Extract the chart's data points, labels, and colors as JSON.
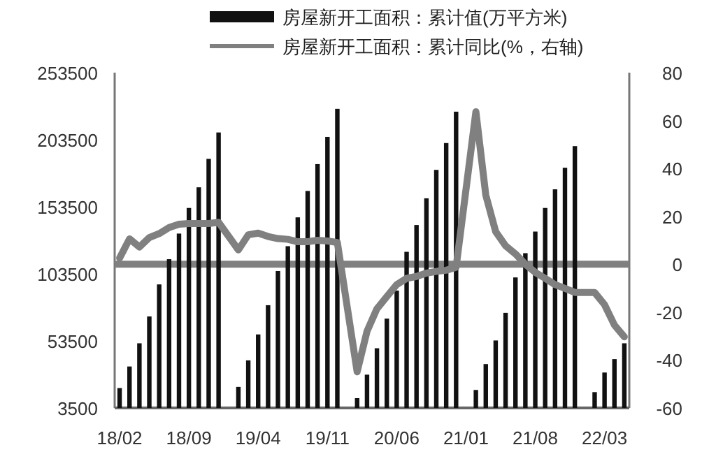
{
  "chart_data": {
    "type": "bar",
    "categories": [
      "18/02",
      null,
      null,
      null,
      null,
      null,
      null,
      "18/09",
      null,
      null,
      null,
      null,
      null,
      null,
      "19/04",
      null,
      null,
      null,
      null,
      null,
      null,
      "19/11",
      null,
      null,
      null,
      null,
      null,
      null,
      "20/06",
      null,
      null,
      null,
      null,
      null,
      null,
      "21/01",
      null,
      null,
      null,
      null,
      null,
      null,
      "21/08",
      null,
      null,
      null,
      null,
      null,
      null,
      "22/03",
      null,
      null
    ],
    "series": [
      {
        "name": "房屋新开工面积：累计值(万平方米)",
        "color": "#111111",
        "values": [
          18300,
          34400,
          51700,
          71700,
          95600,
          114400,
          133500,
          152600,
          168000,
          189200,
          208900,
          null,
          19200,
          38950,
          58300,
          80100,
          105600,
          124100,
          145600,
          165300,
          185300,
          205600,
          226500,
          null,
          10800,
          28300,
          48000,
          70100,
          91000,
          119900,
          139900,
          159800,
          181000,
          201000,
          224400,
          null,
          16900,
          36200,
          53800,
          74400,
          100800,
          118900,
          135000,
          152600,
          166500,
          182600,
          198700,
          null,
          15300,
          29900,
          39900,
          51700
        ]
      },
      {
        "name": "房屋新开工面积：累计同比(%，右轴)",
        "type": "line",
        "axis": "y2",
        "color": "#808080",
        "values": [
          2.6,
          10.6,
          7.2,
          11.1,
          12.8,
          15.3,
          16.7,
          17.0,
          17.0,
          17.0,
          17.5,
          null,
          6.0,
          12.3,
          13.0,
          11.6,
          10.7,
          10.4,
          9.4,
          9.4,
          10.0,
          9.7,
          9.1,
          null,
          -44.9,
          -28.0,
          -18.6,
          -13.5,
          -8.5,
          -5.9,
          -5.1,
          -3.7,
          -3.0,
          -2.5,
          -1.3,
          null,
          63.7,
          28.9,
          13.6,
          7.7,
          4.3,
          0,
          -3.4,
          -5.9,
          -8.5,
          -10.1,
          -11.8,
          null,
          -11.8,
          -16.9,
          -25.4,
          -30.3
        ]
      }
    ],
    "ylim": [
      3500,
      253500
    ],
    "yticks": [
      3500,
      53500,
      103500,
      153500,
      203500,
      253500
    ],
    "y2lim": [
      -60,
      80
    ],
    "y2ticks": [
      -60,
      -40,
      -20,
      0,
      20,
      40,
      60,
      80
    ],
    "ref_lines": [
      {
        "axis": "y2",
        "value": 0,
        "color": "#808080"
      }
    ],
    "legend": "top"
  }
}
